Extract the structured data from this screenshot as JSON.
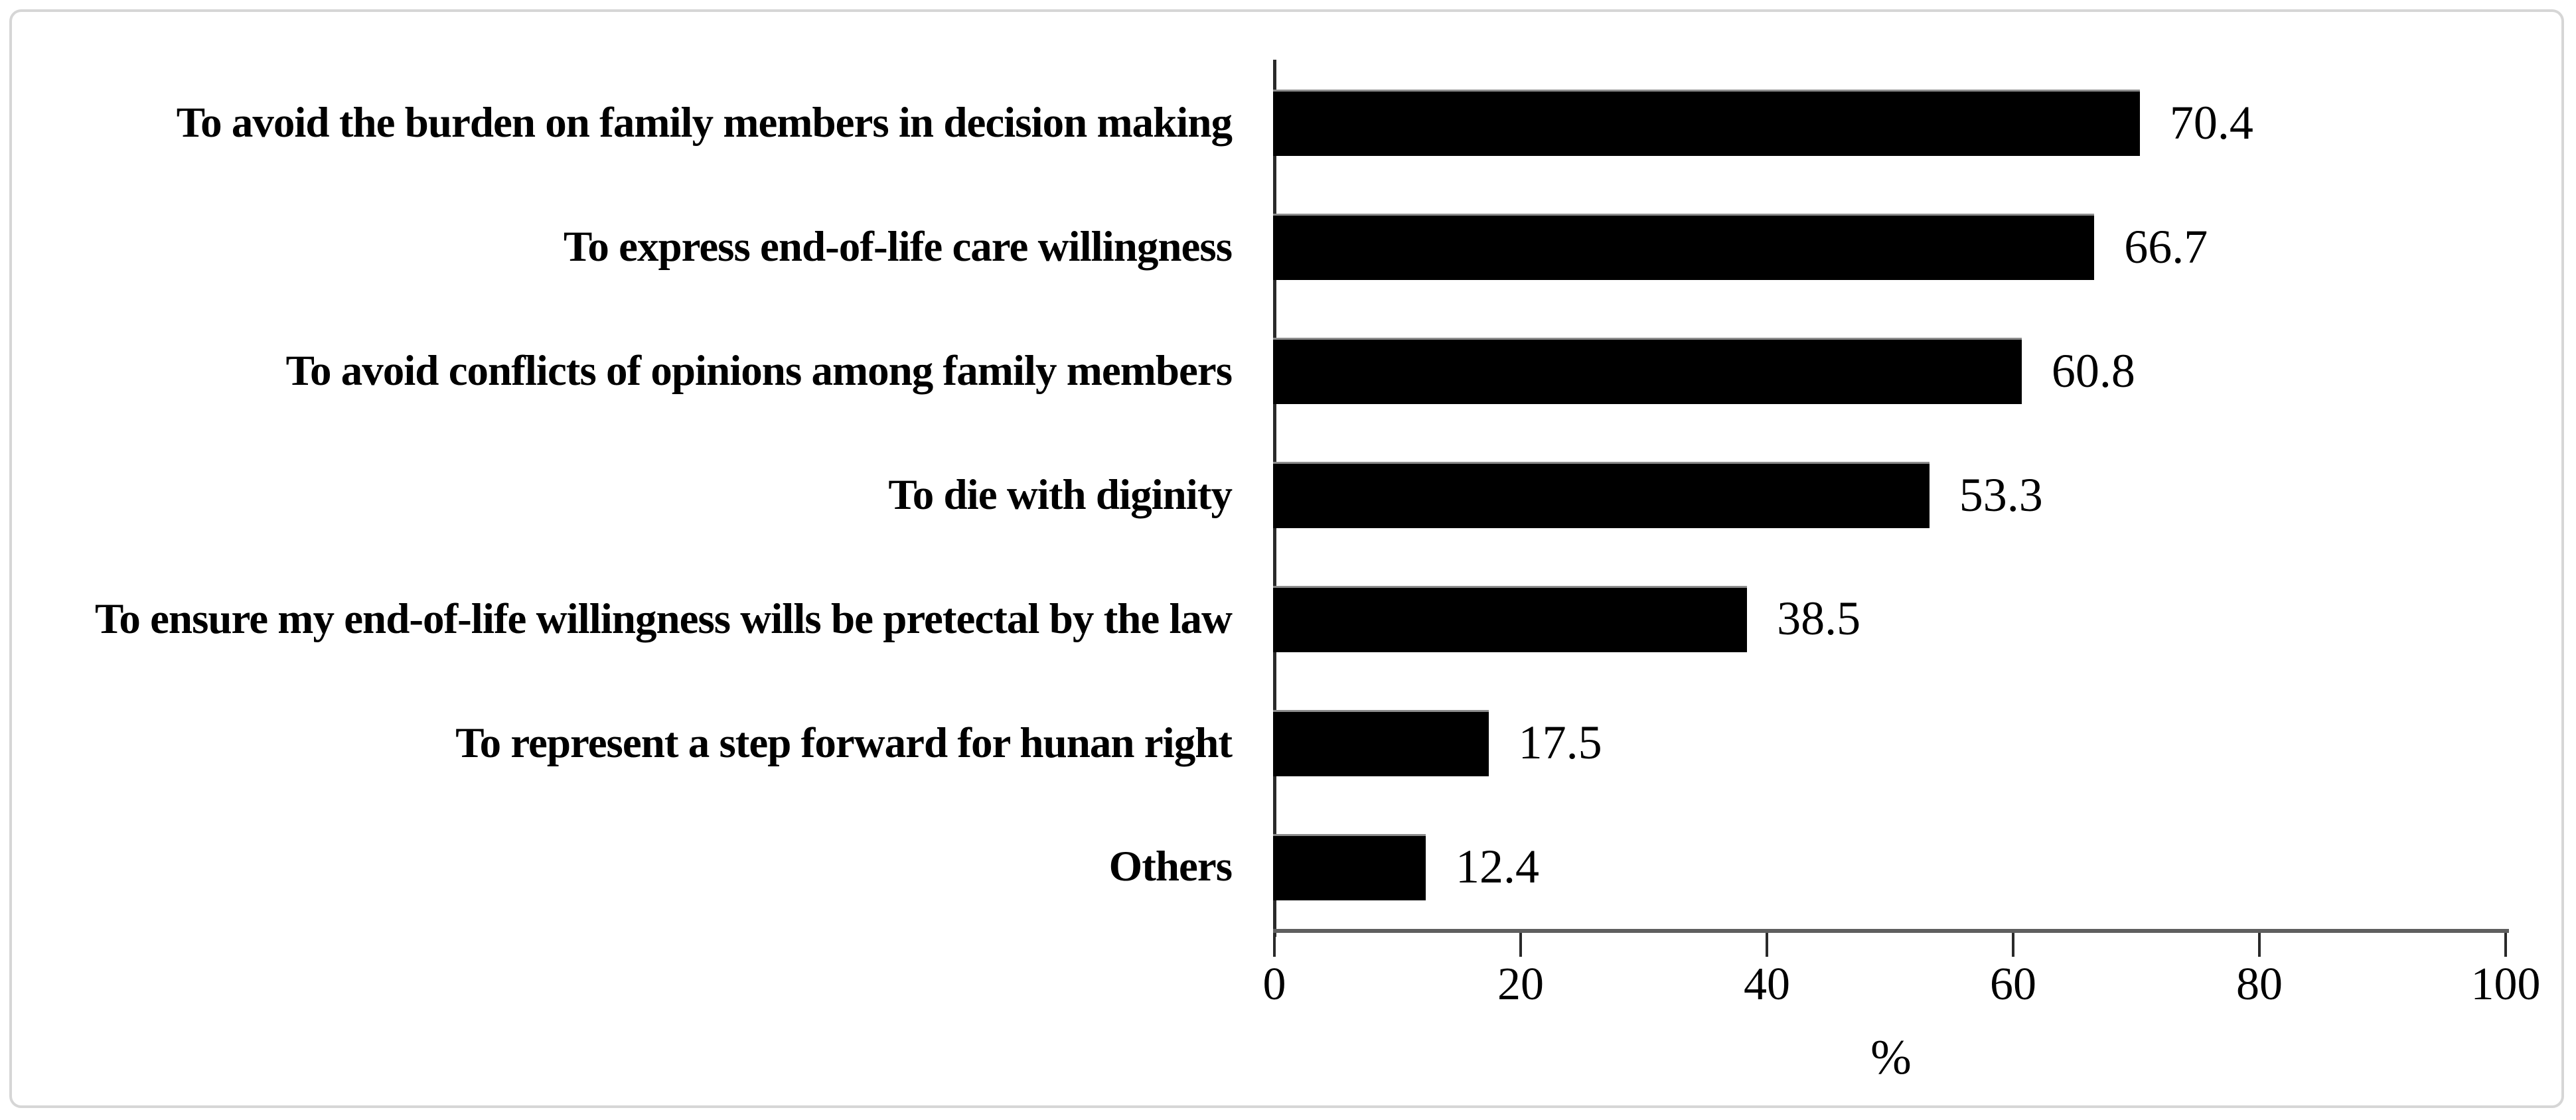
{
  "chart_data": {
    "type": "bar",
    "orientation": "horizontal",
    "title": "",
    "xlabel": "%",
    "ylabel": "",
    "categories": [
      "To avoid the burden on family members in decision making",
      "To express end-of-life care willingness",
      "To avoid conflicts of opinions among family members",
      "To die with diginity",
      "To ensure my end-of-life willingness wills be pretectal by the law",
      "To represent a step forward for hunan right",
      "Others"
    ],
    "values": [
      70.4,
      66.7,
      60.8,
      53.3,
      38.5,
      17.5,
      12.4
    ],
    "value_labels": [
      "70.4",
      "66.7",
      "60.8",
      "53.3",
      "38.5",
      "17.5",
      "12.4"
    ],
    "xlim": [
      0,
      100
    ],
    "xticks": [
      0,
      20,
      40,
      60,
      80,
      100
    ],
    "bar_color": "#000000",
    "grid": false,
    "legend": false
  },
  "frame": {
    "background": "#ffffff",
    "border_color": "#d6d6d6"
  }
}
